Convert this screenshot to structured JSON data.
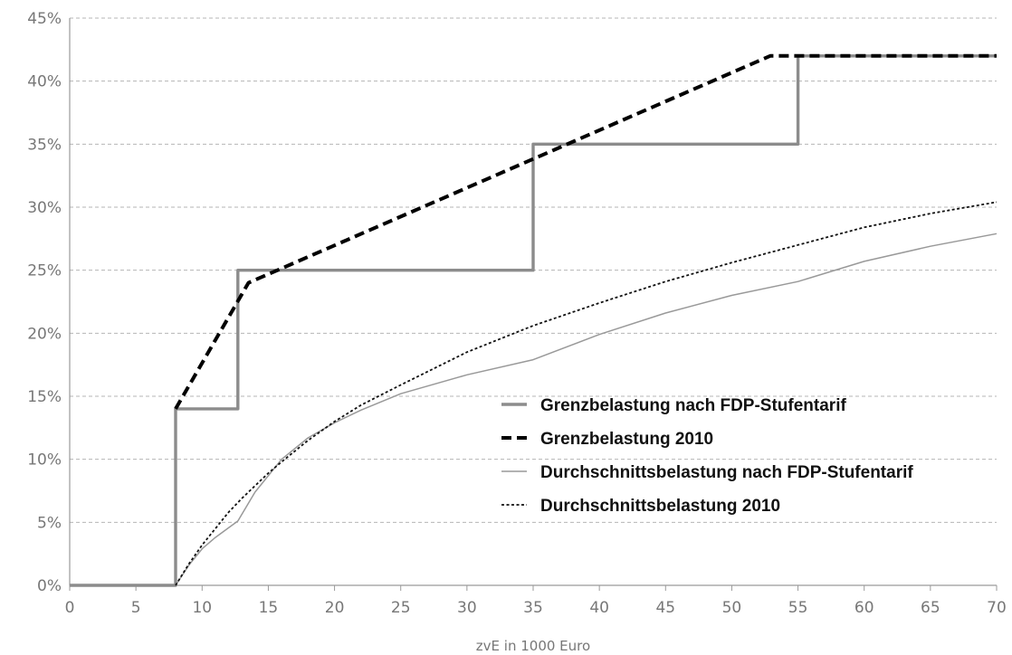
{
  "chart_data": {
    "type": "line",
    "xlabel": "zvE in 1000 Euro",
    "ylabel": "",
    "xlim": [
      0,
      70
    ],
    "ylim": [
      0,
      45
    ],
    "x_ticks": [
      "0",
      "5",
      "10",
      "15",
      "20",
      "25",
      "30",
      "35",
      "40",
      "45",
      "50",
      "55",
      "60",
      "65",
      "70"
    ],
    "y_ticks": [
      "0%",
      "5%",
      "10%",
      "15%",
      "20%",
      "25%",
      "30%",
      "35%",
      "40%",
      "45%"
    ],
    "grid": "horizontal dashed",
    "legend_position": "lower-right",
    "series": [
      {
        "name": "Grenzbelastung nach FDP-Stufentarif",
        "style": "solid-thick",
        "color": "#8c8c8c",
        "x": [
          0,
          8,
          8,
          12.7,
          12.7,
          35,
          35,
          55,
          55,
          70
        ],
        "y": [
          0,
          0,
          14,
          14,
          25,
          25,
          35,
          35,
          42,
          42
        ]
      },
      {
        "name": "Grenzbelastung 2010",
        "style": "dashed-thick",
        "color": "#000000",
        "x": [
          8,
          13.5,
          52.9,
          70
        ],
        "y": [
          14,
          24,
          42,
          42
        ]
      },
      {
        "name": "Durchschnittsbelastung nach FDP-Stufentarif",
        "style": "solid-thin",
        "color": "#999999",
        "x": [
          8,
          9,
          10,
          11,
          12.7,
          14,
          16,
          18,
          20,
          22,
          25,
          30,
          35,
          40,
          45,
          50,
          55,
          60,
          65,
          70
        ],
        "y": [
          0,
          1.6,
          2.9,
          3.8,
          5.1,
          7.4,
          10.0,
          11.7,
          12.9,
          13.9,
          15.2,
          16.7,
          17.9,
          19.9,
          21.6,
          23.0,
          24.1,
          25.7,
          26.9,
          27.9
        ]
      },
      {
        "name": "Durchschnittsbelastung 2010",
        "style": "dotted",
        "color": "#111111",
        "x": [
          8,
          9,
          10,
          11,
          12,
          13,
          14,
          15,
          16,
          18,
          20,
          22,
          25,
          30,
          35,
          40,
          45,
          50,
          55,
          60,
          65,
          70
        ],
        "y": [
          0,
          1.7,
          3.2,
          4.5,
          5.8,
          6.9,
          7.9,
          8.9,
          9.8,
          11.5,
          13.0,
          14.3,
          15.9,
          18.5,
          20.6,
          22.4,
          24.1,
          25.6,
          27.0,
          28.4,
          29.5,
          30.4
        ]
      }
    ]
  }
}
